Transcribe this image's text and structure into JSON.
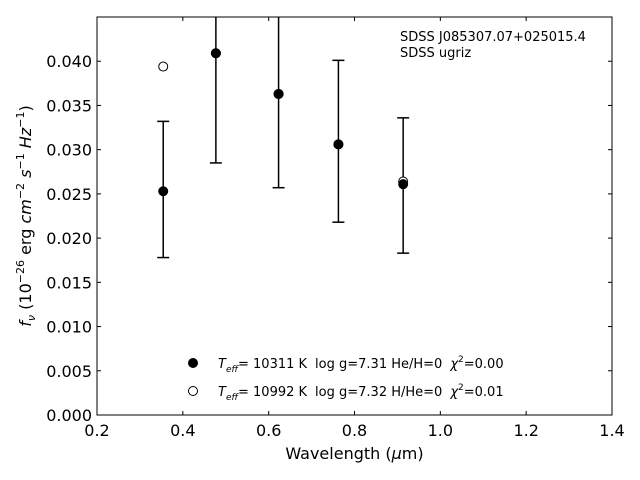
{
  "chart_data": {
    "type": "scatter",
    "xlabel": "Wavelength (μm)",
    "ylabel": "f_ν (10^-26 erg cm^-2 s^-1 Hz^-1)",
    "xlim": [
      0.2,
      1.4
    ],
    "ylim": [
      0.0,
      0.045
    ],
    "x_ticks": [
      "0.2",
      "0.4",
      "0.6",
      "0.8",
      "1.0",
      "1.2",
      "1.4"
    ],
    "y_ticks": [
      "0.000",
      "0.005",
      "0.010",
      "0.015",
      "0.020",
      "0.025",
      "0.030",
      "0.035",
      "0.040"
    ],
    "grid": false,
    "annotation": [
      "SDSS J085307.07+025015.4",
      "SDSS ugriz"
    ],
    "observed": {
      "x": [
        0.3543,
        0.477,
        0.6231,
        0.7625,
        0.9134
      ],
      "y": [
        0.0253,
        0.0409,
        0.0363,
        0.0307,
        0.0261
      ],
      "err_low": [
        0.0178,
        0.0285,
        0.0257,
        0.0218,
        0.0183
      ],
      "err_high": [
        0.0332,
        0.056,
        0.048,
        0.0401,
        0.0336
      ]
    },
    "series": [
      {
        "name": "T_eff = 10311 K  log g=7.31  He/H=0  χ²=0.00",
        "marker": "filled-circle",
        "x": [
          0.3543,
          0.477,
          0.6231,
          0.7625,
          0.9134
        ],
        "y": [
          0.0253,
          0.0409,
          0.0363,
          0.0306,
          0.0261
        ]
      },
      {
        "name": "T_eff = 10992 K  log g=7.32  H/He=0  χ²=0.01",
        "marker": "open-circle",
        "x": [
          0.3543,
          0.477,
          0.6231,
          0.7625,
          0.9134
        ],
        "y": [
          0.0394,
          0.0409,
          0.0363,
          0.0306,
          0.0264
        ]
      }
    ],
    "legend": {
      "placement": "lower-center",
      "entries": [
        {
          "teff_label": "T",
          "teff_sub": "eff",
          "teff_value": "= 10311 K",
          "params": "log g=7.31  He/H=0",
          "chi_symbol": "χ",
          "chi_sup": "2",
          "chi_value": "=0.00"
        },
        {
          "teff_label": "T",
          "teff_sub": "eff",
          "teff_value": "= 10992 K",
          "params": "log g=7.32  H/He=0",
          "chi_symbol": "χ",
          "chi_sup": "2",
          "chi_value": "=0.01"
        }
      ]
    },
    "colors": {
      "marker": "#000000",
      "axes": "#000000",
      "background": "#ffffff"
    }
  }
}
